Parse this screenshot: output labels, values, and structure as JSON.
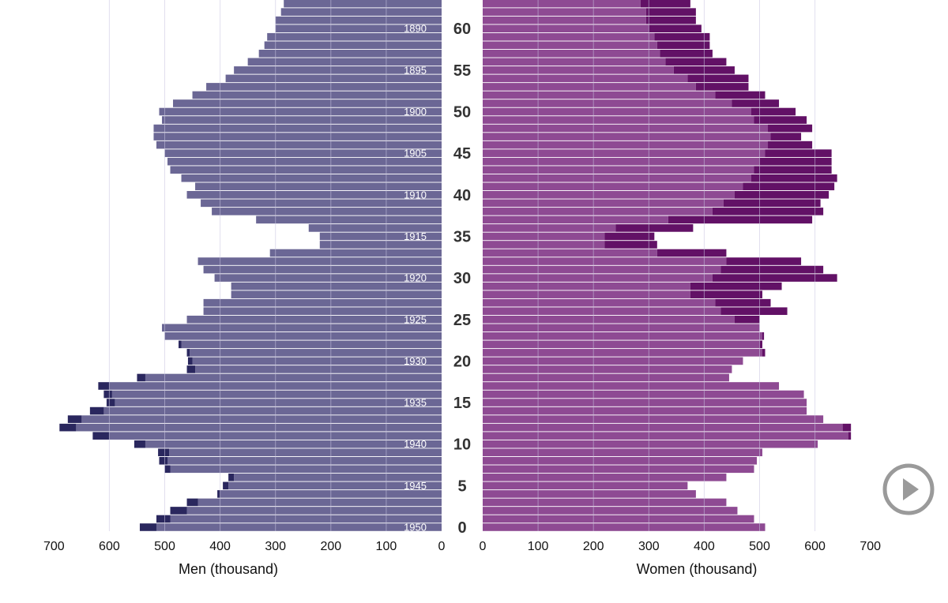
{
  "chart_data": {
    "type": "bar",
    "orientation": "horizontal-population-pyramid",
    "age_label_ticks": [
      0,
      5,
      10,
      15,
      20,
      25,
      30,
      35,
      40,
      45,
      50,
      55,
      60
    ],
    "birth_year_labels": [
      {
        "age": 0,
        "year": "1950"
      },
      {
        "age": 5,
        "year": "1945"
      },
      {
        "age": 10,
        "year": "1940"
      },
      {
        "age": 15,
        "year": "1935"
      },
      {
        "age": 20,
        "year": "1930"
      },
      {
        "age": 25,
        "year": "1925"
      },
      {
        "age": 30,
        "year": "1920"
      },
      {
        "age": 35,
        "year": "1915"
      },
      {
        "age": 40,
        "year": "1910"
      },
      {
        "age": 45,
        "year": "1905"
      },
      {
        "age": 50,
        "year": "1900"
      },
      {
        "age": 55,
        "year": "1895"
      },
      {
        "age": 60,
        "year": "1890"
      }
    ],
    "ages": [
      0,
      1,
      2,
      3,
      4,
      5,
      6,
      7,
      8,
      9,
      10,
      11,
      12,
      13,
      14,
      15,
      16,
      17,
      18,
      19,
      20,
      21,
      22,
      23,
      24,
      25,
      26,
      27,
      28,
      29,
      30,
      31,
      32,
      33,
      34,
      35,
      36,
      37,
      38,
      39,
      40,
      41,
      42,
      43,
      44,
      45,
      46,
      47,
      48,
      49,
      50,
      51,
      52,
      53,
      54,
      55,
      56,
      57,
      58,
      59,
      60,
      61,
      62,
      63
    ],
    "series": [
      {
        "side": "men",
        "base": [
          515,
          490,
          460,
          440,
          400,
          385,
          375,
          490,
          495,
          492,
          535,
          600,
          660,
          650,
          610,
          590,
          595,
          600,
          535,
          445,
          450,
          455,
          470,
          500,
          505,
          460,
          430,
          430,
          380,
          380,
          410,
          430,
          440,
          310,
          220,
          220,
          240,
          335,
          415,
          435,
          460,
          445,
          470,
          490,
          495,
          500,
          515,
          520,
          520,
          505,
          510,
          485,
          450,
          425,
          390,
          375,
          350,
          330,
          320,
          315,
          300,
          300,
          290,
          285
        ],
        "excess": [
          30,
          25,
          30,
          20,
          5,
          10,
          10,
          10,
          15,
          20,
          20,
          30,
          30,
          25,
          25,
          15,
          15,
          20,
          15,
          15,
          8,
          5,
          5,
          0,
          0,
          0,
          0,
          0,
          0,
          0,
          0,
          0,
          0,
          0,
          0,
          0,
          0,
          0,
          0,
          0,
          0,
          0,
          0,
          0,
          0,
          0,
          0,
          0,
          0,
          0,
          0,
          0,
          0,
          0,
          0,
          0,
          0,
          0,
          0,
          0,
          0,
          0,
          0,
          0
        ]
      },
      {
        "side": "women",
        "base": [
          510,
          490,
          460,
          440,
          385,
          370,
          440,
          490,
          495,
          505,
          605,
          660,
          650,
          615,
          585,
          585,
          580,
          535,
          445,
          450,
          470,
          505,
          500,
          505,
          500,
          455,
          430,
          420,
          375,
          375,
          415,
          430,
          440,
          315,
          220,
          220,
          240,
          335,
          415,
          435,
          455,
          470,
          485,
          490,
          500,
          510,
          515,
          520,
          515,
          490,
          485,
          450,
          420,
          385,
          370,
          345,
          330,
          320,
          315,
          310,
          300,
          295,
          295,
          285
        ],
        "excess": [
          0,
          0,
          0,
          0,
          0,
          0,
          0,
          0,
          0,
          0,
          0,
          5,
          15,
          0,
          0,
          0,
          0,
          0,
          0,
          0,
          0,
          5,
          5,
          3,
          0,
          45,
          120,
          100,
          130,
          165,
          225,
          185,
          135,
          125,
          95,
          90,
          140,
          260,
          200,
          175,
          170,
          165,
          155,
          140,
          130,
          120,
          80,
          55,
          80,
          95,
          80,
          85,
          90,
          95,
          110,
          110,
          110,
          95,
          95,
          100,
          95,
          90,
          90,
          90
        ]
      }
    ],
    "men_axis": {
      "label": "Men (thousand)",
      "ticks": [
        700,
        600,
        500,
        400,
        300,
        200,
        100,
        0
      ],
      "range": [
        0,
        700
      ]
    },
    "women_axis": {
      "label": "Women (thousand)",
      "ticks": [
        0,
        100,
        200,
        300,
        400,
        500,
        600,
        700
      ],
      "range": [
        0,
        700
      ]
    },
    "grid": true
  },
  "colors": {
    "men_base": "#6b6795",
    "men_excess": "#2a275e",
    "women_base": "#8e4a93",
    "women_excess": "#621166",
    "grid": "#c9c5e0"
  },
  "play_button": {
    "icon": "play-icon",
    "color": "#9a9a9a"
  }
}
